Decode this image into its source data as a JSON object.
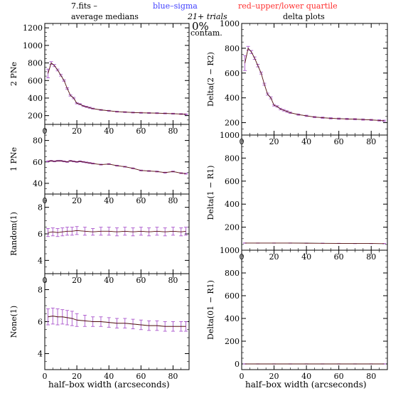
{
  "header": {
    "left": "7.fits  –",
    "blue": "blue–sigma",
    "red": "red–upper/lower quartile",
    "trials": "21+ trials",
    "contam_pct": "0%",
    "contam_word": "contam.",
    "left_title": "average medians",
    "right_title": "delta plots"
  },
  "colors": {
    "line": "#000000",
    "sigma": "#4040ff",
    "quartile": "#ff3030",
    "err": "#aa55cc"
  },
  "chart_data": [
    {
      "id": "2pne",
      "type": "line",
      "ylabel": "2 PNe",
      "xlim": [
        0,
        90
      ],
      "ylim": [
        100,
        1250
      ],
      "yticks": [
        200,
        400,
        600,
        800,
        1000,
        1200
      ],
      "xticks": [
        0,
        20,
        40,
        60,
        80
      ],
      "x": [
        2,
        4,
        6,
        8,
        10,
        12,
        14,
        16,
        18,
        20,
        22,
        24,
        26,
        28,
        30,
        35,
        40,
        45,
        50,
        55,
        60,
        65,
        70,
        75,
        80,
        85,
        88
      ],
      "y": [
        680,
        800,
        770,
        720,
        660,
        600,
        510,
        430,
        400,
        340,
        330,
        310,
        300,
        290,
        280,
        265,
        255,
        245,
        240,
        235,
        232,
        230,
        228,
        225,
        222,
        218,
        215
      ],
      "err": [
        50,
        15,
        12,
        10,
        10,
        8,
        8,
        8,
        8,
        6,
        6,
        6,
        6,
        6,
        5,
        5,
        5,
        5,
        5,
        5,
        5,
        5,
        5,
        5,
        5,
        5,
        5
      ]
    },
    {
      "id": "delta2",
      "type": "line",
      "ylabel": "Delta(2 − R2)",
      "xlim": [
        0,
        90
      ],
      "ylim": [
        100,
        1000
      ],
      "yticks": [
        200,
        400,
        600,
        800,
        1000
      ],
      "xticks": [
        0,
        20,
        40,
        60,
        80
      ],
      "x": [
        2,
        4,
        6,
        8,
        10,
        12,
        14,
        16,
        18,
        20,
        22,
        24,
        26,
        28,
        30,
        35,
        40,
        45,
        50,
        55,
        60,
        65,
        70,
        75,
        80,
        85,
        88
      ],
      "y": [
        680,
        800,
        770,
        720,
        660,
        600,
        510,
        430,
        400,
        340,
        330,
        310,
        300,
        290,
        280,
        265,
        255,
        245,
        240,
        235,
        232,
        230,
        228,
        225,
        222,
        218,
        215
      ],
      "err": [
        60,
        15,
        12,
        10,
        10,
        8,
        8,
        8,
        8,
        6,
        6,
        6,
        6,
        6,
        5,
        5,
        5,
        5,
        5,
        5,
        5,
        5,
        5,
        5,
        5,
        5,
        5
      ]
    },
    {
      "id": "1pne",
      "type": "line",
      "ylabel": "1 PNe",
      "xlim": [
        0,
        90
      ],
      "ylim": [
        30,
        95
      ],
      "yticks": [
        40,
        60,
        80
      ],
      "xticks": [
        0,
        20,
        40,
        60,
        80
      ],
      "x": [
        2,
        4,
        6,
        8,
        10,
        12,
        14,
        16,
        18,
        20,
        22,
        24,
        26,
        28,
        30,
        35,
        40,
        45,
        50,
        55,
        60,
        65,
        70,
        75,
        80,
        85,
        88
      ],
      "y": [
        60.5,
        61,
        60.5,
        61,
        61,
        60.5,
        60,
        61,
        60.5,
        60,
        60.5,
        60,
        59.5,
        59,
        58.5,
        57.5,
        58,
        56.5,
        55.5,
        54,
        52,
        51.5,
        51,
        50,
        51,
        49.5,
        49
      ],
      "err": [
        0.4,
        0.4,
        0.4,
        0.4,
        0.4,
        0.4,
        0.4,
        0.4,
        0.4,
        0.4,
        0.4,
        0.4,
        0.4,
        0.4,
        0.4,
        0.4,
        0.4,
        0.4,
        0.4,
        0.4,
        0.4,
        0.4,
        0.4,
        0.4,
        0.4,
        0.4,
        0.4
      ]
    },
    {
      "id": "delta1",
      "type": "line",
      "ylabel": "Delta(1 − R1)",
      "xlim": [
        0,
        90
      ],
      "ylim": [
        0,
        1000
      ],
      "yticks": [
        200,
        400,
        600,
        800,
        1000
      ],
      "xticks": [
        0,
        20,
        40,
        60,
        80
      ],
      "x": [
        2,
        10,
        20,
        30,
        40,
        50,
        60,
        70,
        80,
        88
      ],
      "y": [
        62,
        62,
        62,
        62,
        61,
        60,
        59,
        58,
        58,
        57
      ],
      "err": [
        1,
        1,
        1,
        1,
        1,
        1,
        1,
        1,
        1,
        1
      ]
    },
    {
      "id": "random",
      "type": "line",
      "ylabel": "Random(1)",
      "xlim": [
        0,
        90
      ],
      "ylim": [
        3,
        9
      ],
      "yticks": [
        4,
        6,
        8
      ],
      "xticks": [
        0,
        20,
        40,
        60,
        80
      ],
      "x": [
        2,
        5,
        8,
        11,
        14,
        17,
        20,
        25,
        30,
        35,
        40,
        45,
        50,
        55,
        60,
        65,
        70,
        75,
        80,
        85,
        88
      ],
      "y": [
        6.1,
        6.15,
        6.1,
        6.15,
        6.2,
        6.2,
        6.25,
        6.2,
        6.15,
        6.2,
        6.2,
        6.15,
        6.2,
        6.15,
        6.2,
        6.15,
        6.2,
        6.15,
        6.2,
        6.15,
        6.2
      ],
      "err": [
        0.3,
        0.3,
        0.3,
        0.3,
        0.3,
        0.3,
        0.3,
        0.3,
        0.25,
        0.3,
        0.3,
        0.3,
        0.3,
        0.3,
        0.3,
        0.3,
        0.3,
        0.3,
        0.3,
        0.3,
        0.3
      ]
    },
    {
      "id": "delta0",
      "type": "line",
      "ylabel": "Delta(01 − R1)",
      "xlim": [
        0,
        90
      ],
      "ylim": [
        -50,
        1000
      ],
      "yticks": [
        0,
        200,
        400,
        600,
        800,
        1000
      ],
      "xticks": [
        0,
        20,
        40,
        60,
        80
      ],
      "x": [
        2,
        10,
        20,
        30,
        40,
        50,
        60,
        70,
        80,
        88
      ],
      "y": [
        0,
        0,
        0,
        0,
        0,
        0,
        0,
        0,
        0,
        0
      ],
      "err": [
        1,
        1,
        1,
        1,
        1,
        1,
        1,
        1,
        1,
        1
      ]
    },
    {
      "id": "none",
      "type": "line",
      "ylabel": "None(1)",
      "xlabel": "half–box width (arcseconds)",
      "xlim": [
        0,
        90
      ],
      "ylim": [
        3,
        9
      ],
      "yticks": [
        4,
        6,
        8
      ],
      "xticks": [
        0,
        20,
        40,
        60,
        80
      ],
      "x": [
        2,
        5,
        8,
        11,
        14,
        17,
        20,
        25,
        30,
        35,
        40,
        45,
        50,
        55,
        60,
        65,
        70,
        75,
        80,
        85,
        88
      ],
      "y": [
        6.3,
        6.35,
        6.3,
        6.3,
        6.25,
        6.2,
        6.1,
        6.05,
        6.0,
        6.0,
        5.95,
        5.9,
        5.9,
        5.85,
        5.8,
        5.75,
        5.75,
        5.7,
        5.7,
        5.7,
        5.7
      ],
      "err": [
        0.5,
        0.5,
        0.5,
        0.45,
        0.45,
        0.45,
        0.4,
        0.35,
        0.3,
        0.3,
        0.3,
        0.3,
        0.3,
        0.3,
        0.3,
        0.3,
        0.3,
        0.3,
        0.3,
        0.3,
        0.3
      ]
    },
    {
      "id": "blank",
      "type": "line",
      "xlabel": "half–box width (arcseconds)",
      "xlim": [
        0,
        90
      ],
      "ylim": [
        -50,
        1000
      ],
      "yticks": [],
      "xticks": [
        0,
        20,
        40,
        60,
        80
      ],
      "x": [],
      "y": [],
      "err": []
    }
  ]
}
